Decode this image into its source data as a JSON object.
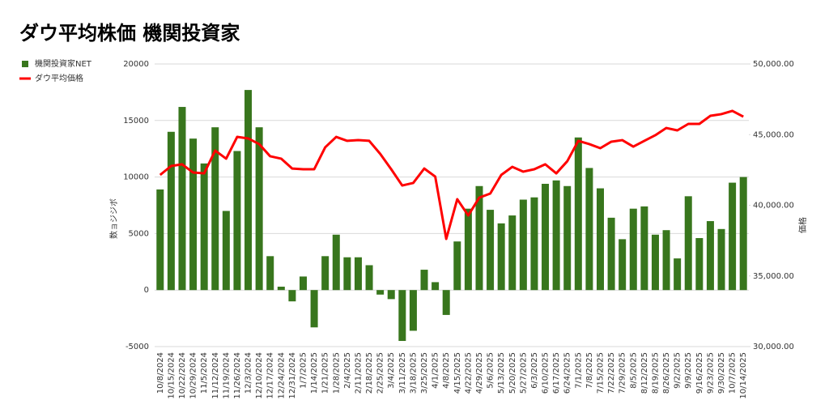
{
  "chart_data": {
    "type": "bar-line",
    "title": "ダウ平均株価 機関投資家",
    "y_label": "数ョジジボ",
    "y2_label": "価格",
    "categories": [
      "10/8/2024",
      "10/15/2024",
      "10/22/2024",
      "10/29/2024",
      "11/5/2024",
      "11/12/2024",
      "11/19/2024",
      "11/26/2024",
      "12/3/2024",
      "12/10/2024",
      "12/17/2024",
      "12/24/2024",
      "12/31/2024",
      "1/7/2025",
      "1/14/2025",
      "1/21/2025",
      "1/28/2025",
      "2/4/2025",
      "2/11/2025",
      "2/18/2025",
      "2/25/2025",
      "3/4/2025",
      "3/11/2025",
      "3/18/2025",
      "3/25/2025",
      "4/1/2025",
      "4/8/2025",
      "4/15/2025",
      "4/22/2025",
      "4/29/2025",
      "5/6/2025",
      "5/13/2025",
      "5/20/2025",
      "5/27/2025",
      "6/3/2025",
      "6/10/2025",
      "6/17/2025",
      "6/24/2025",
      "7/1/2025",
      "7/8/2025",
      "7/15/2025",
      "7/22/2025",
      "7/29/2025",
      "8/5/2025",
      "8/12/2025",
      "8/19/2025",
      "8/26/2025",
      "9/2/2025",
      "9/9/2025",
      "9/16/2025",
      "9/23/2025",
      "9/30/2025",
      "10/7/2025",
      "10/14/2025"
    ],
    "series": [
      {
        "name": "機関投資家NET",
        "type": "bar",
        "color": "#38761d",
        "values": [
          8900,
          14000,
          16200,
          13400,
          11200,
          14400,
          7000,
          12300,
          17700,
          14400,
          3000,
          300,
          -1000,
          1200,
          -3300,
          3000,
          4900,
          2900,
          2900,
          2200,
          -400,
          -800,
          -4500,
          -3600,
          1800,
          700,
          -2200,
          4300,
          7200,
          9200,
          7100,
          5900,
          6600,
          8000,
          8200,
          9400,
          9700,
          9200,
          13500,
          10800,
          9000,
          6400,
          4500,
          7200,
          7400,
          4900,
          5300,
          2800,
          8300,
          4600,
          6100,
          5400,
          9500,
          10000
        ]
      },
      {
        "name": "ダウ平均価格",
        "type": "line",
        "axis": "y2",
        "color": "#ff0000",
        "values": [
          42150,
          42780,
          42900,
          42320,
          42260,
          43870,
          43300,
          44840,
          44730,
          44330,
          43470,
          43300,
          42600,
          42550,
          42550,
          44100,
          44840,
          44560,
          44610,
          44560,
          43640,
          42550,
          41400,
          41580,
          42600,
          42030,
          37620,
          40430,
          39280,
          40540,
          40830,
          42150,
          42720,
          42380,
          42550,
          42900,
          42260,
          43120,
          44560,
          44330,
          44040,
          44500,
          44610,
          44150,
          44560,
          44960,
          45470,
          45300,
          45760,
          45760,
          46330,
          46450,
          46680,
          46270
        ]
      }
    ],
    "ylim": [
      -5000,
      20000
    ],
    "yticks": [
      -5000,
      0,
      5000,
      10000,
      15000,
      20000
    ],
    "y2lim": [
      30000,
      50000
    ],
    "y2ticks": [
      {
        "value": 30000,
        "label": "30,000.00"
      },
      {
        "value": 35000,
        "label": "35,000.00"
      },
      {
        "value": 40000,
        "label": "40,000.00"
      },
      {
        "value": 45000,
        "label": "45,000.00"
      },
      {
        "value": 50000,
        "label": "50,000.00"
      }
    ],
    "grid": true,
    "legend": "top-left"
  }
}
